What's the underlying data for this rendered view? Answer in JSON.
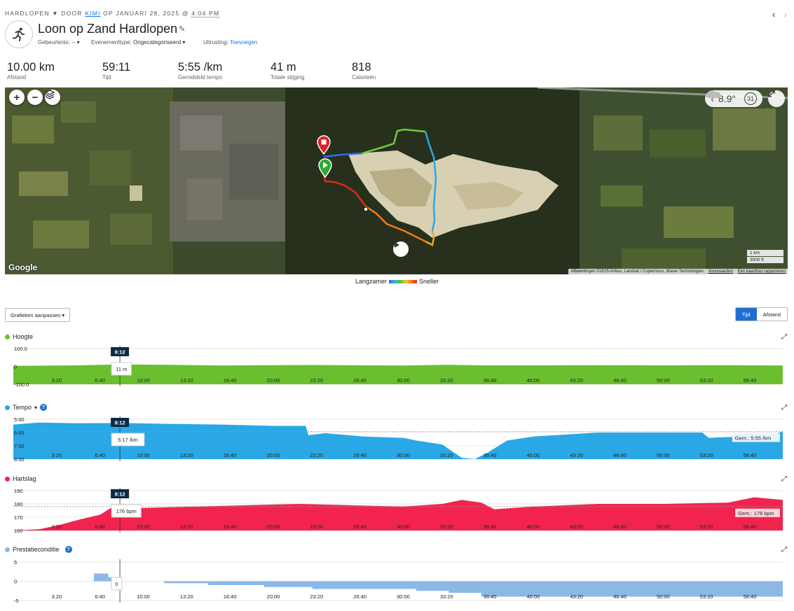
{
  "breadcrumb": {
    "activity_type": "HARDLOPEN",
    "arrow": "▼",
    "by": "DOOR",
    "user": "KIMI",
    "date_prefix": "OP JANUARI 28, 2025 @",
    "time": "4:04 PM"
  },
  "nav": {
    "prev": "‹",
    "next": "›"
  },
  "activity": {
    "title": "Loon op Zand Hardlopen",
    "icon": "runner-icon",
    "edit_icon": "✎"
  },
  "meta": {
    "event_label": "Gebeurtenis:",
    "event_value": "-- ▾",
    "event_type_label": "Evenementtype:",
    "event_type_value": "Ongecategoriseerd ▾",
    "gear_label": "Uitrusting:",
    "gear_link": "Toevoegen"
  },
  "stats": [
    {
      "value": "10.00 km",
      "label": "Afstand"
    },
    {
      "value": "59:11",
      "label": "Tijd"
    },
    {
      "value": "5:55 /km",
      "label": "Gemiddeld tempo"
    },
    {
      "value": "41 m",
      "label": "Totale stijging"
    },
    {
      "value": "818",
      "label": "Calorieën"
    }
  ],
  "map": {
    "zoom_in": "+",
    "zoom_out": "−",
    "layers_icon": "layers-icon",
    "weather_arrow": "‹",
    "temperature": "8.9°",
    "weather_icon": "cloud-icon",
    "wind": "31",
    "expand_icon": "expand-icon",
    "google": "Google",
    "attribution": "Afbeeldingen ©2025 Airbus, Landsat / Copernicus, Maxar Technologies",
    "terms": "Voorwaarden",
    "report": "Een kaartfout rapporteren",
    "scale_km": "1 km",
    "scale_ft": "3000 ft",
    "play_icon": "play-icon",
    "start_icon": "start-marker-icon",
    "finish_icon": "finish-marker-icon"
  },
  "speed_legend": {
    "slow": "Langzamer",
    "fast": "Sneller"
  },
  "controls": {
    "customize": "Grafieken aanpassen ▾",
    "time": "Tijd",
    "distance": "Afstand"
  },
  "colors": {
    "elevation": "#6abf2e",
    "pace": "#2aa8e6",
    "heart_rate": "#f2244e",
    "performance": "#8cb8e6",
    "cursor_box": "#0d2b47"
  },
  "x_ticks": [
    "3:20",
    "6:40",
    "10:00",
    "13:20",
    "16:40",
    "20:00",
    "23:20",
    "26:40",
    "30:00",
    "33:20",
    "36:40",
    "40:00",
    "43:20",
    "46:40",
    "50:00",
    "53:20",
    "56:40"
  ],
  "charts": {
    "elevation": {
      "label": "Hoogte",
      "y_ticks": [
        "100.0",
        "0",
        "-100.0"
      ],
      "cursor_time": "8:12",
      "cursor_value": "11 m",
      "expand_icon": "expand-icon"
    },
    "pace": {
      "label": "Tempo",
      "dropdown": "▾",
      "help": "?",
      "y_ticks": [
        "5:00",
        "6:00",
        "7:00",
        "8:00"
      ],
      "cursor_time": "8:12",
      "cursor_value": "5:17 /km",
      "avg_label": "Gem.: 5:55 /km",
      "expand_icon": "expand-icon"
    },
    "heart_rate": {
      "label": "Hartslag",
      "y_ticks": [
        "190",
        "180",
        "170",
        "160"
      ],
      "cursor_time": "8:12",
      "cursor_value": "176 bpm",
      "avg_label": "Gem.: 178 bpm",
      "expand_icon": "expand-icon"
    },
    "performance": {
      "label": "Prestatieconditie",
      "help": "?",
      "y_ticks": [
        "5",
        "0",
        "-5"
      ],
      "cursor_value": "0",
      "expand_icon": "expand-icon"
    }
  },
  "chart_data": [
    {
      "type": "area",
      "title": "Hoogte",
      "x_unit": "minutes",
      "ylim": [
        -100,
        100
      ],
      "x": [
        0,
        5,
        8.2,
        12,
        16,
        20,
        23,
        27,
        30,
        33.5,
        36,
        40,
        45,
        50,
        55,
        59.2
      ],
      "values": [
        3,
        6,
        11,
        9,
        5,
        7,
        8,
        6,
        5,
        9,
        6,
        6,
        7,
        6,
        7,
        5
      ]
    },
    {
      "type": "area",
      "title": "Tempo",
      "x_unit": "minutes",
      "y_unit": "min/km",
      "ylim": [
        5,
        8
      ],
      "average": 5.92,
      "x": [
        0,
        2,
        5,
        8.2,
        12,
        16,
        20,
        22.5,
        22.7,
        24,
        27,
        30,
        31,
        33,
        34.5,
        35.5,
        36.5,
        38,
        40,
        45,
        50,
        53,
        53.5,
        56,
        58.5,
        59.2
      ],
      "values": [
        5.4,
        5.25,
        5.3,
        5.28,
        5.35,
        5.4,
        5.5,
        5.5,
        6.2,
        6.05,
        6.3,
        6.4,
        6.6,
        6.9,
        7.9,
        8.0,
        7.5,
        6.6,
        6.3,
        6.0,
        6.0,
        6.0,
        6.4,
        6.3,
        6.2,
        5.9
      ]
    },
    {
      "type": "area",
      "title": "Hartslag",
      "x_unit": "minutes",
      "y_unit": "bpm",
      "ylim": [
        160,
        190
      ],
      "average": 178,
      "x": [
        0,
        2,
        3.5,
        5,
        6.7,
        7.5,
        8.2,
        10,
        14,
        18,
        22,
        26,
        30,
        33,
        34.5,
        36,
        37,
        40,
        45,
        50,
        55,
        57,
        59.2
      ],
      "values": [
        160,
        161,
        164,
        168,
        172,
        177,
        176,
        177,
        178,
        179,
        180,
        179,
        178,
        180,
        183,
        181,
        176,
        178,
        180,
        180,
        181,
        185,
        183
      ]
    },
    {
      "type": "area",
      "title": "Prestatieconditie",
      "x_unit": "minutes",
      "ylim": [
        -5,
        5
      ],
      "x": [
        6.2,
        7.3,
        8.2,
        11.6,
        15,
        19.3,
        23,
        27,
        31,
        33.5,
        36,
        40,
        50,
        59.2
      ],
      "values": [
        2,
        1,
        0,
        -0.5,
        -1,
        -1.5,
        -2,
        -2,
        -2.5,
        -3,
        -4,
        -4,
        -4,
        -4
      ]
    }
  ]
}
